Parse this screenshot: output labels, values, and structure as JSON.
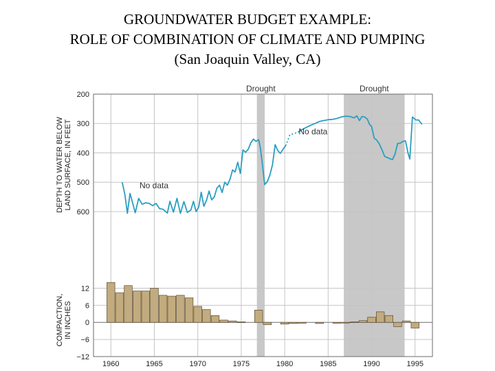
{
  "page": {
    "title_line1": "GROUNDWATER BUDGET EXAMPLE:",
    "title_line2": "ROLE OF COMBINATION OF CLIMATE AND PUMPING",
    "title_line3": "(San Joaquin Valley, CA)"
  },
  "chart_data": {
    "type": "line",
    "x_range": [
      1958,
      1997
    ],
    "x_ticks": [
      1960,
      1965,
      1970,
      1975,
      1980,
      1985,
      1990,
      1995
    ],
    "colors": {
      "line": "#2a9ec0",
      "bars": "#c2ab7e",
      "bar_outline": "#5a4a30",
      "drought": "#c8c8c8",
      "grid": "#c4c4c4"
    },
    "drought_periods": [
      {
        "label": "Drought",
        "start": 1976.8,
        "end": 1977.7
      },
      {
        "label": "Drought",
        "start": 1986.8,
        "end": 1993.8
      }
    ],
    "annotations": [
      {
        "text": "No data",
        "x": 1963.3,
        "y": 520
      },
      {
        "text": "No data",
        "x": 1981.6,
        "y": 337
      }
    ],
    "water_depth": {
      "ylabel_line1": "DEPTH TO WATER BELOW",
      "ylabel_line2": "LAND SURFACE, IN FEET",
      "y_ticks": [
        200,
        300,
        400,
        500,
        600
      ],
      "y_range": [
        200,
        710
      ],
      "segments": [
        {
          "dashed": false,
          "points": [
            [
              1961.3,
              500
            ],
            [
              1961.6,
              540
            ],
            [
              1961.9,
              606
            ],
            [
              1962.2,
              538
            ],
            [
              1962.5,
              570
            ],
            [
              1962.8,
              604
            ],
            [
              1963.2,
              555
            ],
            [
              1963.6,
              575
            ],
            [
              1964.0,
              570
            ],
            [
              1964.4,
              572
            ],
            [
              1964.8,
              580
            ],
            [
              1965.2,
              572
            ],
            [
              1965.6,
              590
            ],
            [
              1966.0,
              592
            ],
            [
              1966.5,
              605
            ],
            [
              1966.8,
              565
            ],
            [
              1967.2,
              602
            ],
            [
              1967.6,
              555
            ],
            [
              1968.0,
              606
            ],
            [
              1968.4,
              566
            ],
            [
              1968.8,
              603
            ],
            [
              1969.2,
              595
            ],
            [
              1969.5,
              565
            ],
            [
              1969.8,
              600
            ],
            [
              1970.1,
              585
            ],
            [
              1970.4,
              534
            ],
            [
              1970.7,
              582
            ],
            [
              1971.0,
              562
            ],
            [
              1971.3,
              530
            ],
            [
              1971.6,
              560
            ],
            [
              1971.9,
              550
            ],
            [
              1972.2,
              520
            ],
            [
              1972.5,
              510
            ],
            [
              1972.8,
              535
            ],
            [
              1973.1,
              500
            ],
            [
              1973.4,
              510
            ],
            [
              1973.7,
              490
            ],
            [
              1974.0,
              458
            ],
            [
              1974.3,
              465
            ],
            [
              1974.6,
              432
            ],
            [
              1974.9,
              470
            ],
            [
              1975.2,
              390
            ],
            [
              1975.5,
              398
            ],
            [
              1975.8,
              388
            ],
            [
              1976.1,
              366
            ],
            [
              1976.4,
              353
            ],
            [
              1976.7,
              361
            ],
            [
              1977.0,
              355
            ],
            [
              1977.2,
              383
            ],
            [
              1977.4,
              430
            ],
            [
              1977.7,
              508
            ],
            [
              1978.0,
              498
            ],
            [
              1978.3,
              475
            ],
            [
              1978.6,
              440
            ],
            [
              1978.9,
              372
            ],
            [
              1979.2,
              392
            ],
            [
              1979.5,
              402
            ],
            [
              1979.8,
              388
            ],
            [
              1980.1,
              376
            ]
          ]
        },
        {
          "dashed": true,
          "points": [
            [
              1980.1,
              376
            ],
            [
              1980.6,
              338
            ],
            [
              1981.0,
              335
            ],
            [
              1981.5,
              330
            ]
          ]
        },
        {
          "dashed": false,
          "points": [
            [
              1981.5,
              330
            ],
            [
              1982.0,
              321
            ],
            [
              1982.5,
              313
            ],
            [
              1983.0,
              306
            ],
            [
              1983.5,
              300
            ],
            [
              1984.0,
              293
            ],
            [
              1984.5,
              290
            ],
            [
              1985.0,
              287
            ],
            [
              1985.5,
              286
            ],
            [
              1986.0,
              283
            ],
            [
              1986.5,
              278
            ],
            [
              1987.0,
              275
            ],
            [
              1987.5,
              276
            ],
            [
              1988.0,
              281
            ],
            [
              1988.3,
              274
            ],
            [
              1988.6,
              290
            ],
            [
              1988.9,
              276
            ],
            [
              1989.2,
              278
            ],
            [
              1989.5,
              285
            ],
            [
              1989.8,
              305
            ],
            [
              1990.0,
              310
            ],
            [
              1990.3,
              350
            ],
            [
              1990.6,
              357
            ],
            [
              1990.9,
              370
            ],
            [
              1991.2,
              390
            ],
            [
              1991.5,
              412
            ],
            [
              1991.8,
              416
            ],
            [
              1992.1,
              420
            ],
            [
              1992.4,
              423
            ],
            [
              1992.7,
              404
            ],
            [
              1993.0,
              368
            ],
            [
              1993.3,
              367
            ],
            [
              1993.6,
              361
            ],
            [
              1993.9,
              359
            ],
            [
              1994.2,
              402
            ],
            [
              1994.4,
              421
            ],
            [
              1994.7,
              278
            ],
            [
              1995.1,
              288
            ],
            [
              1995.4,
              288
            ],
            [
              1995.8,
              303
            ]
          ]
        }
      ]
    },
    "compaction": {
      "ylabel_line1": "COMPACTION,",
      "ylabel_line2": "IN INCHES",
      "y_ticks": [
        12,
        6,
        0,
        -6,
        -12
      ],
      "y_ticks_labels": [
        "12",
        "6",
        "0",
        "−6",
        "−12"
      ],
      "y_range": [
        -12,
        15
      ],
      "bars": [
        {
          "x": 1960,
          "value": 14
        },
        {
          "x": 1961,
          "value": 10.4
        },
        {
          "x": 1962,
          "value": 12.9
        },
        {
          "x": 1963,
          "value": 11
        },
        {
          "x": 1964,
          "value": 11
        },
        {
          "x": 1965,
          "value": 12
        },
        {
          "x": 1966,
          "value": 9.5
        },
        {
          "x": 1967,
          "value": 9.2
        },
        {
          "x": 1968,
          "value": 9.5
        },
        {
          "x": 1969,
          "value": 8.6
        },
        {
          "x": 1970,
          "value": 5.6
        },
        {
          "x": 1971,
          "value": 4.5
        },
        {
          "x": 1972,
          "value": 2.4
        },
        {
          "x": 1973,
          "value": 0.8
        },
        {
          "x": 1974,
          "value": 0.5
        },
        {
          "x": 1975,
          "value": 0.2
        },
        {
          "x": 1977,
          "value": 4.3
        },
        {
          "x": 1978,
          "value": -0.8
        },
        {
          "x": 1980,
          "value": -0.6
        },
        {
          "x": 1981,
          "value": -0.4
        },
        {
          "x": 1982,
          "value": -0.3
        },
        {
          "x": 1984,
          "value": -0.4
        },
        {
          "x": 1986,
          "value": -0.3
        },
        {
          "x": 1987,
          "value": -0.2
        },
        {
          "x": 1988,
          "value": 0.2
        },
        {
          "x": 1989,
          "value": 0.6
        },
        {
          "x": 1990,
          "value": 1.8
        },
        {
          "x": 1991,
          "value": 3.7
        },
        {
          "x": 1992,
          "value": 2.4
        },
        {
          "x": 1993,
          "value": -1.5
        },
        {
          "x": 1994,
          "value": 0.5
        },
        {
          "x": 1995,
          "value": -2.0
        }
      ]
    }
  }
}
